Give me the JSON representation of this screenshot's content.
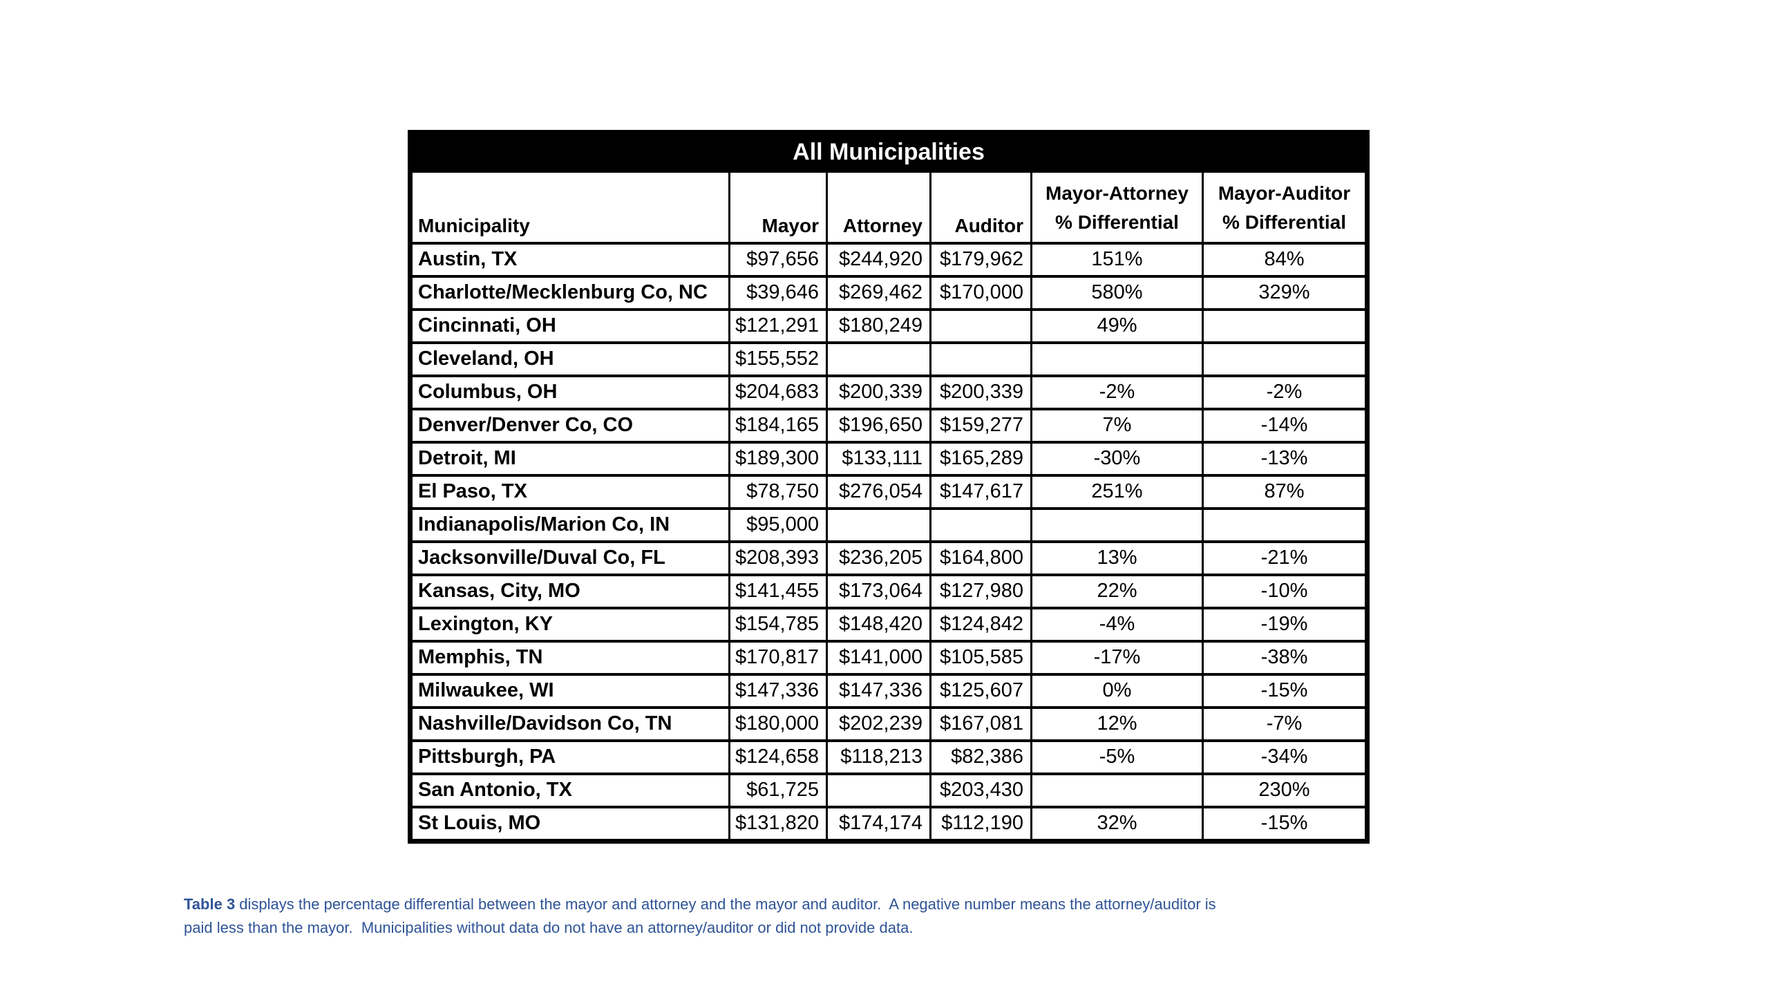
{
  "table": {
    "title": "All Municipalities",
    "header": {
      "municipality": "Municipality",
      "mayor": "Mayor",
      "attorney": "Attorney",
      "auditor": "Auditor",
      "mayor_attorney": [
        "Mayor-Attorney",
        "% Differential"
      ],
      "mayor_auditor": [
        "Mayor-Auditor",
        "% Differential"
      ]
    },
    "rows": [
      {
        "municipality": "Austin, TX",
        "mayor": "$97,656",
        "attorney": "$244,920",
        "auditor": "$179,962",
        "mayor_attorney_diff": "151%",
        "mayor_auditor_diff": "84%"
      },
      {
        "municipality": "Charlotte/Mecklenburg Co, NC",
        "mayor": "$39,646",
        "attorney": "$269,462",
        "auditor": "$170,000",
        "mayor_attorney_diff": "580%",
        "mayor_auditor_diff": "329%"
      },
      {
        "municipality": "Cincinnati, OH",
        "mayor": "$121,291",
        "attorney": "$180,249",
        "auditor": "",
        "mayor_attorney_diff": "49%",
        "mayor_auditor_diff": ""
      },
      {
        "municipality": "Cleveland, OH",
        "mayor": "$155,552",
        "attorney": "",
        "auditor": "",
        "mayor_attorney_diff": "",
        "mayor_auditor_diff": ""
      },
      {
        "municipality": "Columbus, OH",
        "mayor": "$204,683",
        "attorney": "$200,339",
        "auditor": "$200,339",
        "mayor_attorney_diff": "-2%",
        "mayor_auditor_diff": "-2%"
      },
      {
        "municipality": "Denver/Denver Co, CO",
        "mayor": "$184,165",
        "attorney": "$196,650",
        "auditor": "$159,277",
        "mayor_attorney_diff": "7%",
        "mayor_auditor_diff": "-14%"
      },
      {
        "municipality": "Detroit, MI",
        "mayor": "$189,300",
        "attorney": "$133,111",
        "auditor": "$165,289",
        "mayor_attorney_diff": "-30%",
        "mayor_auditor_diff": "-13%"
      },
      {
        "municipality": "El Paso, TX",
        "mayor": "$78,750",
        "attorney": "$276,054",
        "auditor": "$147,617",
        "mayor_attorney_diff": "251%",
        "mayor_auditor_diff": "87%"
      },
      {
        "municipality": "Indianapolis/Marion Co, IN",
        "mayor": "$95,000",
        "attorney": "",
        "auditor": "",
        "mayor_attorney_diff": "",
        "mayor_auditor_diff": ""
      },
      {
        "municipality": "Jacksonville/Duval Co, FL",
        "mayor": "$208,393",
        "attorney": "$236,205",
        "auditor": "$164,800",
        "mayor_attorney_diff": "13%",
        "mayor_auditor_diff": "-21%"
      },
      {
        "municipality": "Kansas, City, MO",
        "mayor": "$141,455",
        "attorney": "$173,064",
        "auditor": "$127,980",
        "mayor_attorney_diff": "22%",
        "mayor_auditor_diff": "-10%"
      },
      {
        "municipality": "Lexington, KY",
        "mayor": "$154,785",
        "attorney": "$148,420",
        "auditor": "$124,842",
        "mayor_attorney_diff": "-4%",
        "mayor_auditor_diff": "-19%"
      },
      {
        "municipality": "Memphis, TN",
        "mayor": "$170,817",
        "attorney": "$141,000",
        "auditor": "$105,585",
        "mayor_attorney_diff": "-17%",
        "mayor_auditor_diff": "-38%"
      },
      {
        "municipality": "Milwaukee, WI",
        "mayor": "$147,336",
        "attorney": "$147,336",
        "auditor": "$125,607",
        "mayor_attorney_diff": "0%",
        "mayor_auditor_diff": "-15%"
      },
      {
        "municipality": "Nashville/Davidson Co, TN",
        "mayor": "$180,000",
        "attorney": "$202,239",
        "auditor": "$167,081",
        "mayor_attorney_diff": "12%",
        "mayor_auditor_diff": "-7%"
      },
      {
        "municipality": "Pittsburgh, PA",
        "mayor": "$124,658",
        "attorney": "$118,213",
        "auditor": "$82,386",
        "mayor_attorney_diff": "-5%",
        "mayor_auditor_diff": "-34%"
      },
      {
        "municipality": "San Antonio, TX",
        "mayor": "$61,725",
        "attorney": "",
        "auditor": "$203,430",
        "mayor_attorney_diff": "",
        "mayor_auditor_diff": "230%"
      },
      {
        "municipality": "St Louis, MO",
        "mayor": "$131,820",
        "attorney": "$174,174",
        "auditor": "$112,190",
        "mayor_attorney_diff": "32%",
        "mayor_auditor_diff": "-15%"
      }
    ]
  },
  "caption": {
    "label": "Table 3",
    "line1": " displays the percentage differential between the mayor and attorney and the mayor and auditor.  A negative number means the attorney/auditor is",
    "line2": "paid less than the mayor.  Municipalities without data do not have an attorney/auditor or did not provide data."
  },
  "colors": {
    "caption_blue": "#2F5496",
    "title_bar_bg": "#000000",
    "title_bar_text": "#ffffff",
    "table_border": "#000000"
  }
}
